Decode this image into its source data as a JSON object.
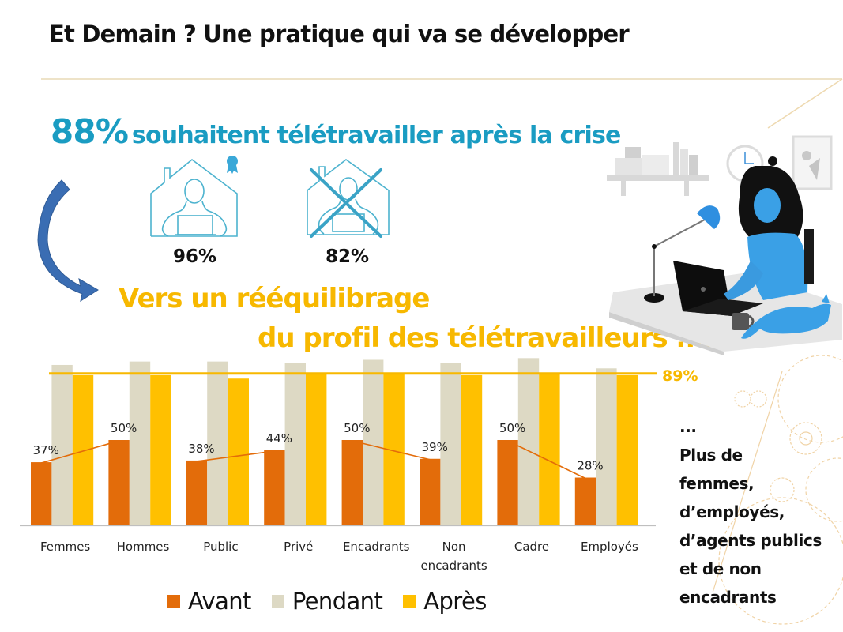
{
  "slide": {
    "title": "Et Demain ? Une pratique qui va se développer",
    "headline_value": "88%",
    "headline_text": "souhaitent télétravailler après la crise",
    "icons": [
      {
        "name": "home-worker-award-icon",
        "value": "96%"
      },
      {
        "name": "home-worker-crossed-icon",
        "value": "82%"
      }
    ],
    "subtitle_line1": "Vers un rééquilibrage",
    "subtitle_line2": "du profil des télétravailleurs ....",
    "side_note": [
      "...",
      "Plus de",
      "femmes,",
      "d’employés,",
      "d’agents publics",
      "et de non",
      "encadrants"
    ],
    "colors": {
      "headline": "#1a9cc2",
      "subtitle": "#f7b800",
      "avant": "#e36c0a",
      "pendant": "#ddd9c4",
      "apres": "#ffc000",
      "reference_line": "#f7b800",
      "arrow": "#3a6db3"
    }
  },
  "chart_data": {
    "type": "bar",
    "title": "",
    "xlabel": "",
    "ylabel": "",
    "ylim": [
      0,
      100
    ],
    "grid": false,
    "legend_position": "bottom",
    "categories": [
      "Femmes",
      "Hommes",
      "Public",
      "Privé",
      "Encadrants",
      "Non encadrants",
      "Cadre",
      "Employés"
    ],
    "category_lines": [
      [
        "Femmes"
      ],
      [
        "Hommes"
      ],
      [
        "Public"
      ],
      [
        "Privé"
      ],
      [
        "Encadrants"
      ],
      [
        "Non",
        "encadrants"
      ],
      [
        "Cadre"
      ],
      [
        "Employés"
      ]
    ],
    "series": [
      {
        "name": "Avant",
        "color": "#e36c0a",
        "values": [
          37,
          50,
          38,
          44,
          50,
          39,
          50,
          28
        ],
        "labels": [
          "37%",
          "50%",
          "38%",
          "44%",
          "50%",
          "39%",
          "50%",
          "28%"
        ]
      },
      {
        "name": "Pendant",
        "color": "#ddd9c4",
        "values": [
          94,
          96,
          96,
          95,
          97,
          95,
          98,
          92
        ]
      },
      {
        "name": "Après",
        "color": "#ffc000",
        "values": [
          88,
          88,
          86,
          89,
          89,
          88,
          89,
          88
        ]
      }
    ],
    "connector_pairs": [
      [
        0,
        1
      ],
      [
        2,
        3
      ],
      [
        4,
        5
      ],
      [
        6,
        7
      ]
    ],
    "reference_line": {
      "value": 89,
      "label": "89%"
    }
  }
}
